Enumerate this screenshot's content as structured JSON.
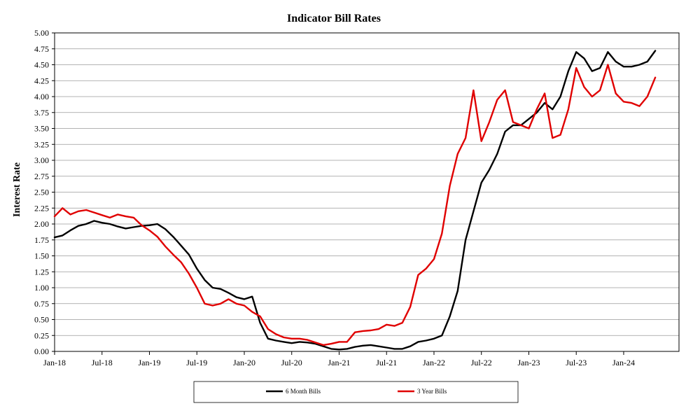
{
  "chart_data": {
    "type": "line",
    "title": "Indicator Bill Rates",
    "ylabel": "Interest Rate",
    "xlabel": "",
    "ylim": [
      0,
      5
    ],
    "xlim": [
      "2018-01",
      "2024-08"
    ],
    "y_ticks": [
      "0.00",
      "0.25",
      "0.50",
      "0.75",
      "1.00",
      "1.25",
      "1.50",
      "1.75",
      "2.00",
      "2.25",
      "2.50",
      "2.75",
      "3.00",
      "3.25",
      "3.50",
      "3.75",
      "4.00",
      "4.25",
      "4.50",
      "4.75",
      "5.00"
    ],
    "x_ticks": [
      {
        "label": "Jan-18",
        "x": "2018-01"
      },
      {
        "label": "Jul-18",
        "x": "2018-07"
      },
      {
        "label": "Jan-19",
        "x": "2019-01"
      },
      {
        "label": "Jul-19",
        "x": "2019-07"
      },
      {
        "label": "Jan-20",
        "x": "2020-01"
      },
      {
        "label": "Jul-20",
        "x": "2020-07"
      },
      {
        "label": "Jan-21",
        "x": "2021-01"
      },
      {
        "label": "Jul-21",
        "x": "2021-07"
      },
      {
        "label": "Jan-22",
        "x": "2022-01"
      },
      {
        "label": "Jul-22",
        "x": "2022-07"
      },
      {
        "label": "Jan-23",
        "x": "2023-01"
      },
      {
        "label": "Jul-23",
        "x": "2023-07"
      },
      {
        "label": "Jan-24",
        "x": "2024-01"
      }
    ],
    "grid": true,
    "legend_position": "bottom",
    "series": [
      {
        "name": "6 Month Bills",
        "color": "#000000",
        "points": [
          [
            "2018-01",
            1.79
          ],
          [
            "2018-02",
            1.82
          ],
          [
            "2018-03",
            1.9
          ],
          [
            "2018-04",
            1.97
          ],
          [
            "2018-05",
            2.0
          ],
          [
            "2018-06",
            2.05
          ],
          [
            "2018-07",
            2.02
          ],
          [
            "2018-08",
            2.0
          ],
          [
            "2018-09",
            1.96
          ],
          [
            "2018-10",
            1.93
          ],
          [
            "2018-11",
            1.95
          ],
          [
            "2018-12",
            1.97
          ],
          [
            "2019-01",
            1.98
          ],
          [
            "2019-02",
            2.0
          ],
          [
            "2019-03",
            1.92
          ],
          [
            "2019-04",
            1.8
          ],
          [
            "2019-05",
            1.66
          ],
          [
            "2019-06",
            1.52
          ],
          [
            "2019-07",
            1.3
          ],
          [
            "2019-08",
            1.12
          ],
          [
            "2019-09",
            1.0
          ],
          [
            "2019-10",
            0.98
          ],
          [
            "2019-11",
            0.92
          ],
          [
            "2019-12",
            0.85
          ],
          [
            "2020-01",
            0.82
          ],
          [
            "2020-02",
            0.86
          ],
          [
            "2020-03",
            0.45
          ],
          [
            "2020-04",
            0.2
          ],
          [
            "2020-05",
            0.17
          ],
          [
            "2020-06",
            0.15
          ],
          [
            "2020-07",
            0.13
          ],
          [
            "2020-08",
            0.15
          ],
          [
            "2020-09",
            0.14
          ],
          [
            "2020-10",
            0.12
          ],
          [
            "2020-11",
            0.08
          ],
          [
            "2020-12",
            0.04
          ],
          [
            "2021-01",
            0.03
          ],
          [
            "2021-02",
            0.04
          ],
          [
            "2021-03",
            0.07
          ],
          [
            "2021-04",
            0.09
          ],
          [
            "2021-05",
            0.1
          ],
          [
            "2021-06",
            0.08
          ],
          [
            "2021-07",
            0.06
          ],
          [
            "2021-08",
            0.04
          ],
          [
            "2021-09",
            0.04
          ],
          [
            "2021-10",
            0.08
          ],
          [
            "2021-11",
            0.15
          ],
          [
            "2021-12",
            0.17
          ],
          [
            "2022-01",
            0.2
          ],
          [
            "2022-02",
            0.25
          ],
          [
            "2022-03",
            0.55
          ],
          [
            "2022-04",
            0.95
          ],
          [
            "2022-05",
            1.75
          ],
          [
            "2022-06",
            2.2
          ],
          [
            "2022-07",
            2.65
          ],
          [
            "2022-08",
            2.85
          ],
          [
            "2022-09",
            3.1
          ],
          [
            "2022-10",
            3.45
          ],
          [
            "2022-11",
            3.55
          ],
          [
            "2022-12",
            3.55
          ],
          [
            "2023-01",
            3.65
          ],
          [
            "2023-02",
            3.75
          ],
          [
            "2023-03",
            3.9
          ],
          [
            "2023-04",
            3.8
          ],
          [
            "2023-05",
            4.0
          ],
          [
            "2023-06",
            4.4
          ],
          [
            "2023-07",
            4.7
          ],
          [
            "2023-08",
            4.6
          ],
          [
            "2023-09",
            4.4
          ],
          [
            "2023-10",
            4.45
          ],
          [
            "2023-11",
            4.7
          ],
          [
            "2023-12",
            4.55
          ],
          [
            "2024-01",
            4.47
          ],
          [
            "2024-02",
            4.47
          ],
          [
            "2024-03",
            4.5
          ],
          [
            "2024-04",
            4.55
          ],
          [
            "2024-05",
            4.72
          ]
        ]
      },
      {
        "name": "3 Year Bills",
        "color": "#e00000",
        "points": [
          [
            "2018-01",
            2.12
          ],
          [
            "2018-02",
            2.25
          ],
          [
            "2018-03",
            2.15
          ],
          [
            "2018-04",
            2.2
          ],
          [
            "2018-05",
            2.22
          ],
          [
            "2018-06",
            2.18
          ],
          [
            "2018-07",
            2.14
          ],
          [
            "2018-08",
            2.1
          ],
          [
            "2018-09",
            2.15
          ],
          [
            "2018-10",
            2.12
          ],
          [
            "2018-11",
            2.1
          ],
          [
            "2018-12",
            1.98
          ],
          [
            "2019-01",
            1.9
          ],
          [
            "2019-02",
            1.8
          ],
          [
            "2019-03",
            1.65
          ],
          [
            "2019-04",
            1.52
          ],
          [
            "2019-05",
            1.4
          ],
          [
            "2019-06",
            1.22
          ],
          [
            "2019-07",
            1.0
          ],
          [
            "2019-08",
            0.75
          ],
          [
            "2019-09",
            0.72
          ],
          [
            "2019-10",
            0.75
          ],
          [
            "2019-11",
            0.82
          ],
          [
            "2019-12",
            0.75
          ],
          [
            "2020-01",
            0.72
          ],
          [
            "2020-02",
            0.62
          ],
          [
            "2020-03",
            0.55
          ],
          [
            "2020-04",
            0.35
          ],
          [
            "2020-05",
            0.27
          ],
          [
            "2020-06",
            0.22
          ],
          [
            "2020-07",
            0.2
          ],
          [
            "2020-08",
            0.2
          ],
          [
            "2020-09",
            0.18
          ],
          [
            "2020-10",
            0.14
          ],
          [
            "2020-11",
            0.1
          ],
          [
            "2020-12",
            0.12
          ],
          [
            "2021-01",
            0.15
          ],
          [
            "2021-02",
            0.15
          ],
          [
            "2021-03",
            0.3
          ],
          [
            "2021-04",
            0.32
          ],
          [
            "2021-05",
            0.33
          ],
          [
            "2021-06",
            0.35
          ],
          [
            "2021-07",
            0.42
          ],
          [
            "2021-08",
            0.4
          ],
          [
            "2021-09",
            0.45
          ],
          [
            "2021-10",
            0.7
          ],
          [
            "2021-11",
            1.2
          ],
          [
            "2021-12",
            1.3
          ],
          [
            "2022-01",
            1.45
          ],
          [
            "2022-02",
            1.85
          ],
          [
            "2022-03",
            2.6
          ],
          [
            "2022-04",
            3.1
          ],
          [
            "2022-05",
            3.35
          ],
          [
            "2022-06",
            4.1
          ],
          [
            "2022-07",
            3.3
          ],
          [
            "2022-08",
            3.6
          ],
          [
            "2022-09",
            3.95
          ],
          [
            "2022-10",
            4.1
          ],
          [
            "2022-11",
            3.6
          ],
          [
            "2022-12",
            3.55
          ],
          [
            "2023-01",
            3.5
          ],
          [
            "2023-02",
            3.8
          ],
          [
            "2023-03",
            4.05
          ],
          [
            "2023-04",
            3.35
          ],
          [
            "2023-05",
            3.4
          ],
          [
            "2023-06",
            3.8
          ],
          [
            "2023-07",
            4.45
          ],
          [
            "2023-08",
            4.15
          ],
          [
            "2023-09",
            4.0
          ],
          [
            "2023-10",
            4.1
          ],
          [
            "2023-11",
            4.5
          ],
          [
            "2023-12",
            4.05
          ],
          [
            "2024-01",
            3.92
          ],
          [
            "2024-02",
            3.9
          ],
          [
            "2024-03",
            3.85
          ],
          [
            "2024-04",
            4.0
          ],
          [
            "2024-05",
            4.3
          ]
        ]
      }
    ]
  }
}
